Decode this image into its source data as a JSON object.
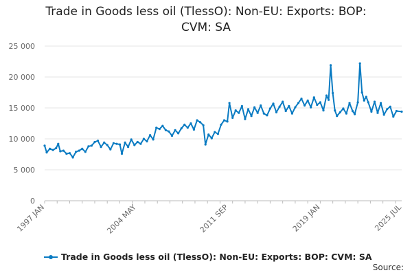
{
  "chart_data": {
    "type": "line",
    "title": [
      "Trade in Goods less oil (TlessO): Non-EU: Exports: BOP:",
      "CVM: SA"
    ],
    "xlabel": "",
    "ylabel": "",
    "ylim": [
      0,
      25000
    ],
    "y_ticks": [
      "0",
      "5 000",
      "10 000",
      "15 000",
      "20 000",
      "25 000"
    ],
    "x_tick_labels": [
      "1997 JAN",
      "2004 MAY",
      "2011 SEP",
      "2019 JAN",
      "2025 JUL"
    ],
    "x_range": [
      "1997-01",
      "2025-07"
    ],
    "grid": "horizontal",
    "legend_position": "bottom",
    "series": [
      {
        "name": "Trade in Goods less oil (TlessO): Non-EU: Exports: BOP: CVM: SA",
        "color": "#0a7bc2",
        "points": [
          [
            "1997-01",
            8900
          ],
          [
            "1997-03",
            7800
          ],
          [
            "1997-06",
            8400
          ],
          [
            "1997-09",
            8200
          ],
          [
            "1997-12",
            8500
          ],
          [
            "1998-02",
            9200
          ],
          [
            "1998-04",
            8000
          ],
          [
            "1998-07",
            8100
          ],
          [
            "1998-10",
            7600
          ],
          [
            "1999-01",
            7700
          ],
          [
            "1999-04",
            7000
          ],
          [
            "1999-07",
            7900
          ],
          [
            "1999-10",
            8100
          ],
          [
            "2000-01",
            8400
          ],
          [
            "2000-04",
            7900
          ],
          [
            "2000-07",
            8800
          ],
          [
            "2000-10",
            8900
          ],
          [
            "2001-01",
            9500
          ],
          [
            "2001-04",
            9700
          ],
          [
            "2001-07",
            8700
          ],
          [
            "2001-10",
            9400
          ],
          [
            "2002-01",
            9000
          ],
          [
            "2002-04",
            8300
          ],
          [
            "2002-07",
            9300
          ],
          [
            "2002-10",
            9200
          ],
          [
            "2003-01",
            9100
          ],
          [
            "2003-03",
            7600
          ],
          [
            "2003-06",
            9400
          ],
          [
            "2003-09",
            8700
          ],
          [
            "2003-12",
            9900
          ],
          [
            "2004-03",
            9000
          ],
          [
            "2004-06",
            9500
          ],
          [
            "2004-09",
            9200
          ],
          [
            "2004-12",
            10000
          ],
          [
            "2005-03",
            9600
          ],
          [
            "2005-06",
            10600
          ],
          [
            "2005-09",
            9900
          ],
          [
            "2005-12",
            11800
          ],
          [
            "2006-03",
            11600
          ],
          [
            "2006-06",
            12100
          ],
          [
            "2006-09",
            11400
          ],
          [
            "2006-12",
            11200
          ],
          [
            "2007-03",
            10500
          ],
          [
            "2007-06",
            11400
          ],
          [
            "2007-09",
            10900
          ],
          [
            "2007-12",
            11700
          ],
          [
            "2008-03",
            12300
          ],
          [
            "2008-06",
            11800
          ],
          [
            "2008-09",
            12500
          ],
          [
            "2008-12",
            11500
          ],
          [
            "2009-03",
            13000
          ],
          [
            "2009-06",
            12700
          ],
          [
            "2009-09",
            12200
          ],
          [
            "2009-11",
            9100
          ],
          [
            "2010-02",
            10700
          ],
          [
            "2010-05",
            10100
          ],
          [
            "2010-08",
            11100
          ],
          [
            "2010-11",
            10800
          ],
          [
            "2011-02",
            12300
          ],
          [
            "2011-05",
            13000
          ],
          [
            "2011-08",
            12800
          ],
          [
            "2011-10",
            15800
          ],
          [
            "2012-01",
            13400
          ],
          [
            "2012-04",
            14600
          ],
          [
            "2012-07",
            14200
          ],
          [
            "2012-10",
            15300
          ],
          [
            "2013-01",
            13200
          ],
          [
            "2013-04",
            14800
          ],
          [
            "2013-07",
            13700
          ],
          [
            "2013-10",
            15100
          ],
          [
            "2014-01",
            14200
          ],
          [
            "2014-04",
            15400
          ],
          [
            "2014-07",
            14100
          ],
          [
            "2014-10",
            13800
          ],
          [
            "2015-01",
            14900
          ],
          [
            "2015-04",
            15700
          ],
          [
            "2015-07",
            14300
          ],
          [
            "2015-10",
            15200
          ],
          [
            "2016-01",
            16000
          ],
          [
            "2016-04",
            14500
          ],
          [
            "2016-07",
            15300
          ],
          [
            "2016-10",
            14100
          ],
          [
            "2017-01",
            15100
          ],
          [
            "2017-04",
            15800
          ],
          [
            "2017-07",
            16500
          ],
          [
            "2017-10",
            15400
          ],
          [
            "2018-01",
            16200
          ],
          [
            "2018-04",
            15100
          ],
          [
            "2018-07",
            16700
          ],
          [
            "2018-10",
            15500
          ],
          [
            "2019-01",
            15900
          ],
          [
            "2019-04",
            14600
          ],
          [
            "2019-07",
            17000
          ],
          [
            "2019-09",
            16300
          ],
          [
            "2019-11",
            21900
          ],
          [
            "2020-01",
            17400
          ],
          [
            "2020-03",
            14600
          ],
          [
            "2020-05",
            13700
          ],
          [
            "2020-08",
            14300
          ],
          [
            "2020-11",
            14900
          ],
          [
            "2021-02",
            14100
          ],
          [
            "2021-05",
            15800
          ],
          [
            "2021-08",
            14500
          ],
          [
            "2021-10",
            14000
          ],
          [
            "2022-01",
            15900
          ],
          [
            "2022-03",
            22200
          ],
          [
            "2022-05",
            17500
          ],
          [
            "2022-07",
            16200
          ],
          [
            "2022-09",
            16800
          ],
          [
            "2022-11",
            15900
          ],
          [
            "2023-02",
            14400
          ],
          [
            "2023-05",
            16000
          ],
          [
            "2023-08",
            14200
          ],
          [
            "2023-11",
            15800
          ],
          [
            "2024-02",
            13900
          ],
          [
            "2024-05",
            14800
          ],
          [
            "2024-08",
            15200
          ],
          [
            "2024-11",
            13600
          ],
          [
            "2025-02",
            14500
          ],
          [
            "2025-07",
            14400
          ]
        ]
      }
    ]
  },
  "source_label": "Source:"
}
